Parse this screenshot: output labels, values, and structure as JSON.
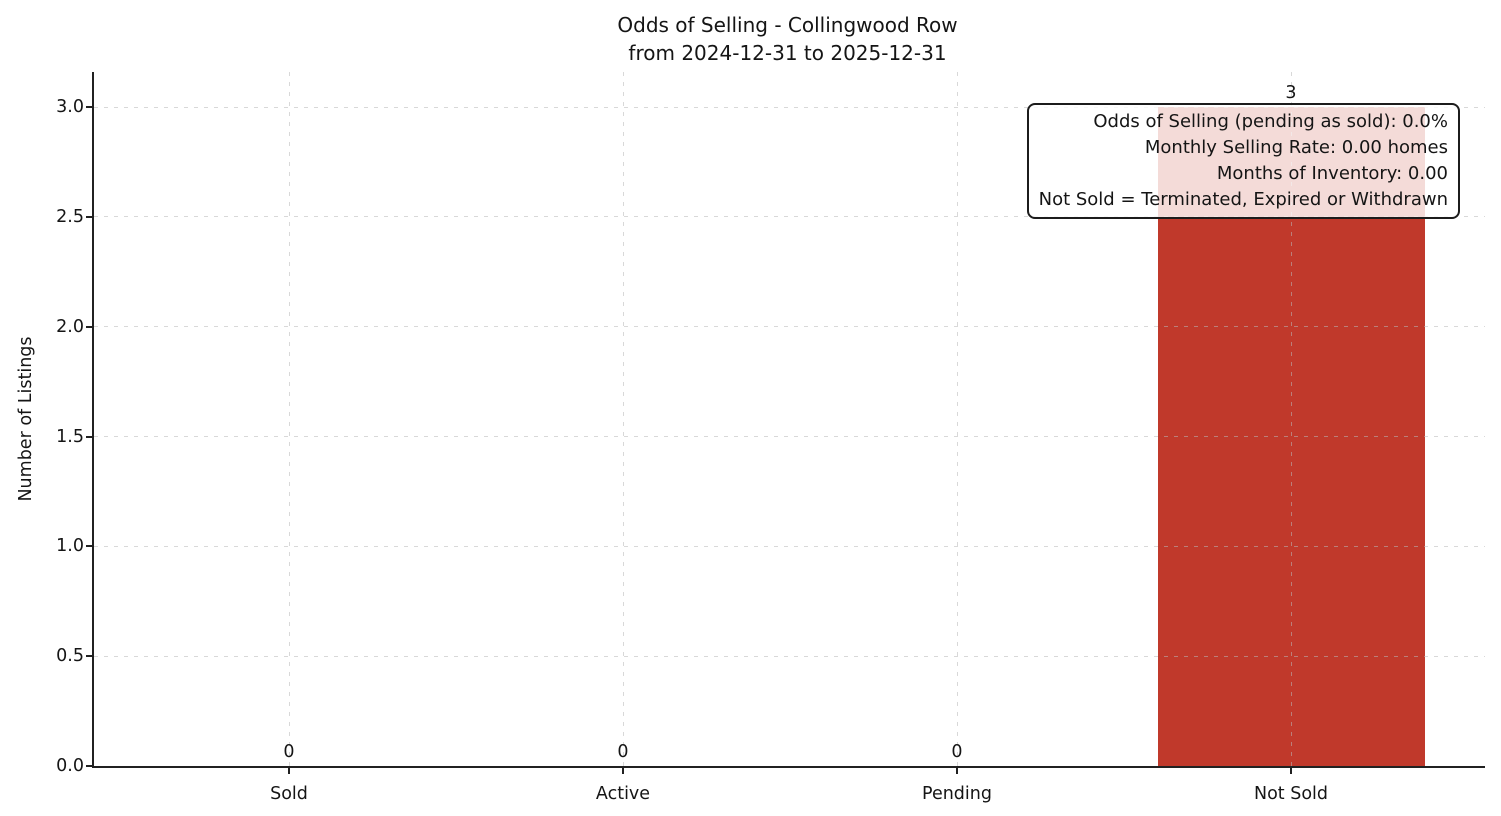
{
  "chart_data": {
    "type": "bar",
    "title": "Odds of Selling - Collingwood Row",
    "subtitle": "from 2024-12-31 to 2025-12-31",
    "categories": [
      "Sold",
      "Active",
      "Pending",
      "Not Sold"
    ],
    "values": [
      0,
      0,
      0,
      3
    ],
    "value_labels": [
      "0",
      "0",
      "0",
      "3"
    ],
    "xlabel": "",
    "ylabel": "Number of Listings",
    "ylim": [
      0,
      3.16
    ],
    "yticks": [
      0.0,
      0.5,
      1.0,
      1.5,
      2.0,
      2.5,
      3.0
    ],
    "ytick_labels": [
      "0.0",
      "0.5",
      "1.0",
      "1.5",
      "2.0",
      "2.5",
      "3.0"
    ],
    "grid": true,
    "grid_style": "dashed",
    "legend_position": "none",
    "bar_color": "#c0392b",
    "annotation_box": {
      "position": "top-right",
      "lines": [
        "Odds of Selling (pending as sold): 0.0%",
        "Monthly Selling Rate: 0.00 homes",
        "Months of Inventory: 0.00",
        "Not Sold = Terminated, Expired or Withdrawn"
      ]
    }
  }
}
